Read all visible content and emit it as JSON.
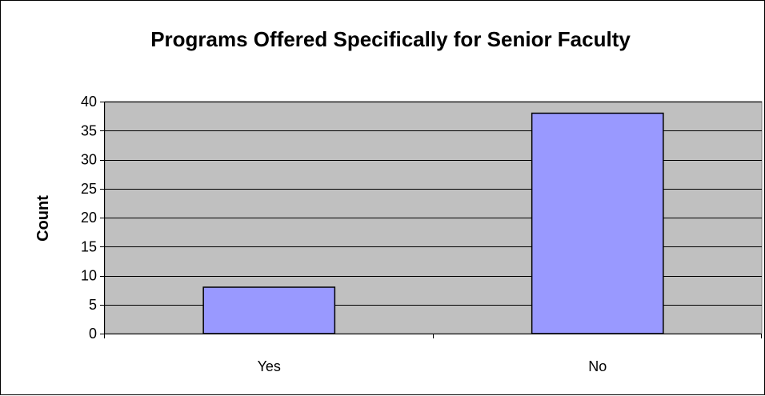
{
  "chart_data": {
    "type": "bar",
    "title": "Programs Offered Specifically for Senior Faculty",
    "xlabel": "",
    "ylabel": "Count",
    "categories": [
      "Yes",
      "No"
    ],
    "values": [
      8,
      38
    ],
    "ylim": [
      0,
      40
    ],
    "yticks": [
      0,
      5,
      10,
      15,
      20,
      25,
      30,
      35,
      40
    ],
    "grid": true,
    "legend": "none",
    "colors": {
      "bar_fill": "#9999ff",
      "bar_stroke": "#000000",
      "plot_background": "#c0c0c0",
      "gridline": "#000000"
    }
  }
}
